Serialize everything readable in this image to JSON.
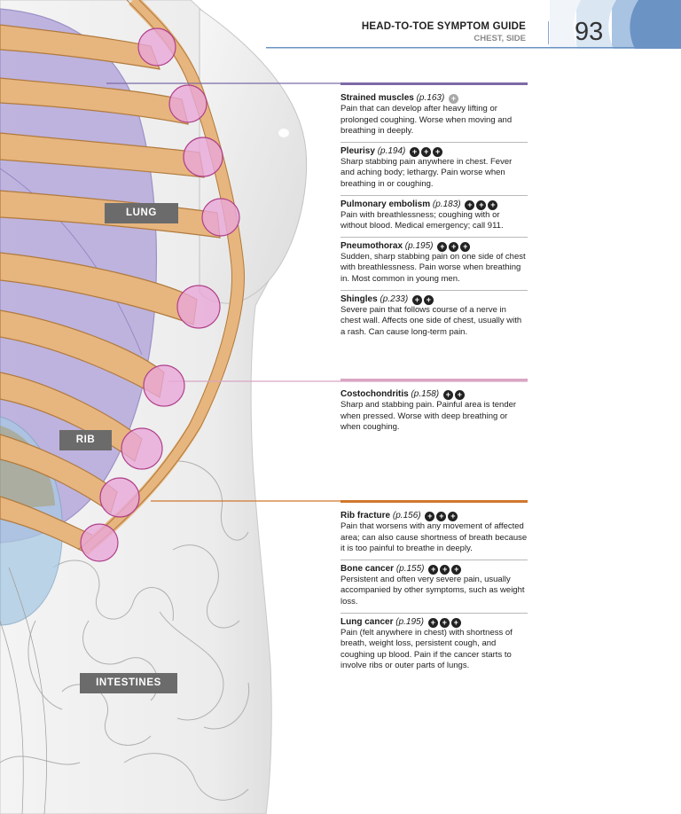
{
  "header": {
    "title": "HEAD-TO-TOE SYMPTOM GUIDE",
    "subtitle": "CHEST, SIDE",
    "page_number": "93"
  },
  "labels": {
    "lung": "LUNG",
    "rib": "RIB",
    "intestines": "INTESTINES"
  },
  "colors": {
    "group_muscle": "#7d6aa6",
    "group_cartilage": "#d9a5c4",
    "group_bone": "#d0772f",
    "rib": "#e7b57e",
    "lung": "#b5a9db",
    "pain_marker": "#e8a8d8"
  },
  "groups": [
    {
      "entries": [
        {
          "name": "Strained muscles",
          "page": "(p.163)",
          "severity": 1,
          "severity_tone": "light",
          "description": "Pain that can develop after heavy lifting or prolonged coughing. Worse when moving and breathing in deeply."
        },
        {
          "name": "Pleurisy",
          "page": "(p.194)",
          "severity": 3,
          "severity_tone": "dark",
          "description": "Sharp stabbing pain anywhere in chest. Fever and aching body; lethargy. Pain worse when breathing in or coughing."
        },
        {
          "name": "Pulmonary embolism",
          "page": "(p.183)",
          "severity": 3,
          "severity_tone": "dark",
          "description": "Pain with breathlessness; coughing with or without blood. Medical emergency; call 911."
        },
        {
          "name": "Pneumothorax",
          "page": "(p.195)",
          "severity": 3,
          "severity_tone": "dark",
          "description": "Sudden, sharp stabbing pain on one side of chest with breathlessness. Pain worse when breathing in. Most common in young men."
        },
        {
          "name": "Shingles",
          "page": "(p.233)",
          "severity": 2,
          "severity_tone": "dark",
          "description": "Severe pain that follows course of a nerve in chest wall. Affects one side of chest, usually with a rash. Can cause long-term pain."
        }
      ]
    },
    {
      "entries": [
        {
          "name": "Costochondritis",
          "page": "(p.158)",
          "severity": 2,
          "severity_tone": "dark",
          "description": "Sharp and stabbing pain. Painful area is tender when pressed. Worse with deep breathing or when coughing."
        }
      ]
    },
    {
      "entries": [
        {
          "name": "Rib fracture",
          "page": "(p.156)",
          "severity": 3,
          "severity_tone": "dark",
          "description": "Pain that worsens with any movement of affected area; can also cause shortness of breath because it is too painful to breathe in deeply."
        },
        {
          "name": "Bone cancer",
          "page": "(p.155)",
          "severity": 3,
          "severity_tone": "dark",
          "description": "Persistent and often very severe pain, usually accompanied by other symptoms, such as weight loss."
        },
        {
          "name": "Lung cancer",
          "page": "(p.195)",
          "severity": 3,
          "severity_tone": "dark",
          "description": "Pain (felt anywhere in chest) with shortness of breath, weight loss, persistent cough, and coughing up blood. Pain if the cancer starts to involve ribs or outer parts of lungs."
        }
      ]
    }
  ]
}
